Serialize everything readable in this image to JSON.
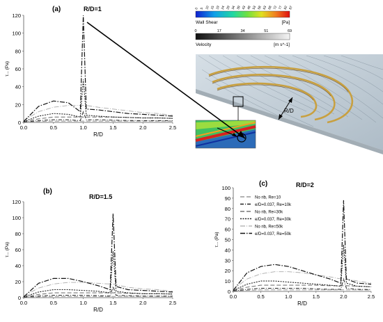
{
  "colors": {
    "axis": "#555555",
    "series_dash_light": "#999999",
    "series_dash_dark": "#222222",
    "rib_gold": "#c8a040",
    "flow_bg": "#c9d3da",
    "wall_blue": "#2c6bb8",
    "arrow": "#000000"
  },
  "legend": {
    "items": [
      "No rib, Re=10",
      "e/D=0.037, Re=10k",
      "No rib, Re=30k",
      "e/D=0.037, Re=30k",
      "No rib, Re=50k",
      "e/D=0.037, Re=50k"
    ]
  },
  "wall_shear_bar": {
    "ticks": [
      "0",
      "5",
      "10",
      "15",
      "19",
      "24",
      "29",
      "34",
      "39",
      "43",
      "48",
      "53",
      "58",
      "63",
      "68",
      "72",
      "77",
      "82",
      "87"
    ],
    "label": "Wall Shear",
    "unit": "[Pa]"
  },
  "velocity_bar": {
    "ticks": [
      "0",
      "17",
      "34",
      "51",
      "69"
    ],
    "label": "Velocity",
    "unit": "[m s^-1]"
  },
  "inset_label": "R/D",
  "chart_data": [
    {
      "type": "line",
      "panel": "(a)",
      "title": "R/D=1",
      "xlabel": "R/D",
      "ylabel": "τ... (Pa)",
      "xlim": [
        0,
        2.5
      ],
      "ylim": [
        0,
        120
      ],
      "xticks": [
        "0.0",
        "0.5",
        "1.0",
        "1.5",
        "2.0",
        "2.5"
      ],
      "yticks": [
        "0",
        "20",
        "40",
        "60",
        "80",
        "100",
        "120"
      ],
      "grid": false,
      "x": [
        0,
        0.25,
        0.5,
        0.75,
        0.95,
        1.0,
        1.05,
        1.25,
        1.5,
        1.75,
        2.0,
        2.25,
        2.5
      ],
      "series": [
        {
          "name": "No rib, Re=10",
          "values": [
            0.5,
            1,
            1.5,
            1.5,
            1.5,
            1.5,
            1.5,
            1.5,
            1.5,
            1.5,
            1.5,
            1.5,
            1.4
          ]
        },
        {
          "name": "e/D=0.037, Re=10k",
          "values": [
            0.5,
            2,
            3,
            3,
            2,
            12,
            3,
            3,
            2.5,
            2.2,
            2,
            2,
            1.8
          ]
        },
        {
          "name": "No rib, Re=30k",
          "values": [
            1,
            4,
            6,
            6,
            6,
            6,
            6,
            6,
            6,
            5.5,
            5,
            5,
            4.5
          ]
        },
        {
          "name": "e/D=0.037, Re=30k",
          "values": [
            1,
            7,
            10,
            9,
            6,
            48,
            8,
            7,
            6,
            5.5,
            5,
            5,
            4.5
          ]
        },
        {
          "name": "No rib, Re=50k",
          "values": [
            2,
            12,
            17,
            19,
            19,
            19,
            19,
            17,
            15,
            13,
            11,
            10,
            8
          ]
        },
        {
          "name": "e/D=0.037, Re=50k",
          "values": [
            1,
            18,
            24,
            22,
            12,
            120,
            15,
            14,
            12,
            10,
            9,
            8,
            7
          ]
        }
      ]
    },
    {
      "type": "line",
      "panel": "(b)",
      "title": "R/D=1.5",
      "xlabel": "R/D",
      "ylabel": "τ... (Pa)",
      "xlim": [
        0,
        2.5
      ],
      "ylim": [
        0,
        120
      ],
      "xticks": [
        "0.0",
        "0.5",
        "1.0",
        "1.5",
        "2.0",
        "2.5"
      ],
      "yticks": [
        "0",
        "20",
        "40",
        "60",
        "80",
        "100",
        "120"
      ],
      "grid": false,
      "x": [
        0,
        0.25,
        0.5,
        0.75,
        1.0,
        1.25,
        1.45,
        1.5,
        1.55,
        1.75,
        2.0,
        2.25,
        2.5
      ],
      "series": [
        {
          "name": "No rib, Re=10",
          "values": [
            0.5,
            1,
            1.5,
            1.5,
            1.5,
            1.5,
            1.5,
            1.5,
            1.5,
            1.5,
            1.5,
            1.5,
            1.4
          ]
        },
        {
          "name": "e/D=0.037, Re=10k",
          "values": [
            0.5,
            2,
            3,
            3,
            3,
            2.5,
            2,
            14,
            3,
            2.5,
            2,
            2,
            1.8
          ]
        },
        {
          "name": "No rib, Re=30k",
          "values": [
            1,
            4,
            6,
            6,
            6,
            6,
            6,
            6,
            6,
            5.5,
            5,
            5,
            4.5
          ]
        },
        {
          "name": "e/D=0.037, Re=30k",
          "values": [
            1,
            7,
            10,
            10,
            9,
            8,
            6,
            58,
            8,
            6,
            5,
            5,
            4.5
          ]
        },
        {
          "name": "No rib, Re=50k",
          "values": [
            2,
            12,
            17,
            19,
            19,
            18,
            17,
            17,
            16,
            13,
            11,
            10,
            8
          ]
        },
        {
          "name": "e/D=0.037, Re=50k",
          "values": [
            1,
            18,
            24,
            24,
            20,
            15,
            10,
            105,
            14,
            10,
            9,
            8,
            7
          ]
        }
      ]
    },
    {
      "type": "line",
      "panel": "(c)",
      "title": "R/D=2",
      "xlabel": "R/D",
      "ylabel": "τ... (Pa)",
      "xlim": [
        0,
        2.5
      ],
      "ylim": [
        0,
        100
      ],
      "xticks": [
        "0.0",
        "0.5",
        "1.0",
        "1.5",
        "2.0",
        "2.5"
      ],
      "yticks": [
        "0",
        "10",
        "20",
        "30",
        "40",
        "50",
        "60",
        "70",
        "80",
        "90",
        "100"
      ],
      "grid": false,
      "x": [
        0,
        0.25,
        0.5,
        0.75,
        1.0,
        1.25,
        1.5,
        1.75,
        1.95,
        2.0,
        2.05,
        2.25,
        2.5
      ],
      "series": [
        {
          "name": "No rib, Re=10",
          "values": [
            0.5,
            1,
            1.5,
            1.5,
            1.5,
            1.5,
            1.5,
            1.5,
            1.5,
            1.5,
            1.5,
            1.5,
            1.4
          ]
        },
        {
          "name": "e/D=0.037, Re=10k",
          "values": [
            0.5,
            2,
            3,
            3,
            3,
            3,
            2.5,
            2,
            2,
            12,
            3,
            2,
            1.8
          ]
        },
        {
          "name": "No rib, Re=30k",
          "values": [
            1,
            4,
            6,
            6,
            6,
            6,
            6,
            5.5,
            5.5,
            5.5,
            5.5,
            5,
            4.5
          ]
        },
        {
          "name": "e/D=0.037, Re=30k",
          "values": [
            1,
            7,
            10,
            10,
            9,
            8,
            7,
            6,
            5,
            45,
            8,
            5,
            4.5
          ]
        },
        {
          "name": "No rib, Re=50k",
          "values": [
            2,
            12,
            17,
            19,
            19,
            18,
            16,
            14,
            12,
            12,
            12,
            10,
            8
          ]
        },
        {
          "name": "e/D=0.037, Re=50k",
          "values": [
            1,
            18,
            24,
            26,
            24,
            20,
            16,
            12,
            8,
            88,
            12,
            8,
            7
          ]
        }
      ]
    }
  ]
}
